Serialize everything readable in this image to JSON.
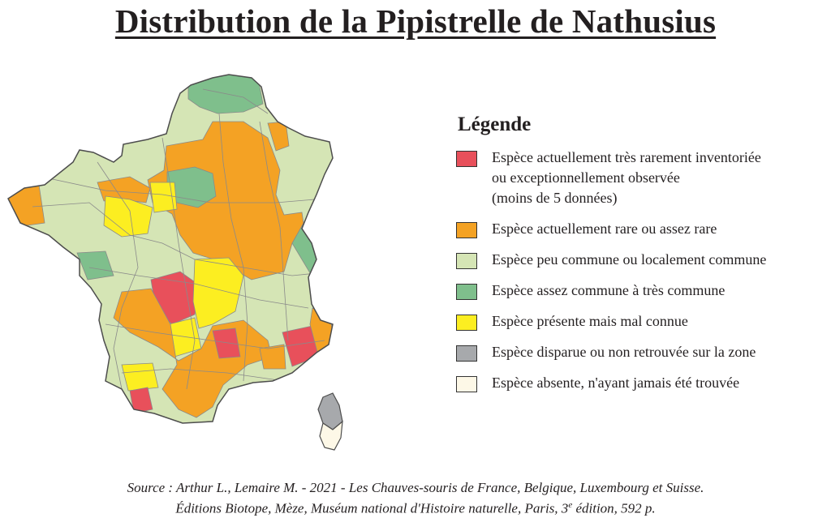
{
  "title": "Distribution de la Pipistrelle de Nathusius",
  "legend": {
    "title": "Légende",
    "items": [
      {
        "color": "#e8505b",
        "lines": [
          "Espèce actuellement très rarement inventoriée",
          "ou exceptionnellement observée",
          "(moins de 5 données)"
        ]
      },
      {
        "color": "#f4a224",
        "lines": [
          "Espèce actuellement rare ou assez rare"
        ]
      },
      {
        "color": "#d5e5b5",
        "lines": [
          "Espèce peu commune ou localement commune"
        ]
      },
      {
        "color": "#7fbf8c",
        "lines": [
          "Espèce assez commune à très commune"
        ]
      },
      {
        "color": "#fcee21",
        "lines": [
          "Espèce présente mais mal connue"
        ]
      },
      {
        "color": "#a7a9ac",
        "lines": [
          "Espèce disparue ou non retrouvée sur la zone"
        ]
      },
      {
        "color": "#fdf8e7",
        "lines": [
          "Espèce absente, n'ayant jamais été trouvée"
        ]
      }
    ]
  },
  "source": {
    "line1": "Source : Arthur L.,  Lemaire M. - 2021 - Les Chauves-souris de France, Belgique, Luxembourg et Suisse.",
    "line2_main": "Éditions Biotope, Mèze, Muséum national d'Histoire naturelle, Paris, 3",
    "line2_sup": "e",
    "line2_end": " édition, 592 p."
  }
}
